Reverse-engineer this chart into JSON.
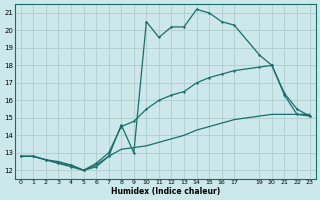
{
  "xlabel": "Humidex (Indice chaleur)",
  "xlim": [
    -0.5,
    23.5
  ],
  "ylim": [
    11.5,
    21.5
  ],
  "yticks": [
    12,
    13,
    14,
    15,
    16,
    17,
    18,
    19,
    20,
    21
  ],
  "xticks": [
    0,
    1,
    2,
    3,
    4,
    5,
    6,
    7,
    8,
    9,
    10,
    11,
    12,
    13,
    14,
    15,
    16,
    17,
    19,
    20,
    21,
    22,
    23
  ],
  "bg_color": "#cce8ea",
  "line_color": "#1a6e6a",
  "grid_color": "#b0cccc",
  "line1_x": [
    0,
    1,
    2,
    3,
    4,
    5,
    6,
    7,
    8,
    9,
    10,
    11,
    12,
    13,
    14,
    15,
    16,
    17,
    19,
    20,
    21,
    22,
    23
  ],
  "line1_y": [
    12.8,
    12.8,
    12.6,
    12.4,
    12.2,
    12.0,
    12.2,
    12.8,
    14.6,
    13.0,
    20.5,
    19.6,
    20.2,
    20.2,
    21.2,
    21.0,
    20.5,
    20.3,
    18.6,
    18.0,
    16.4,
    15.5,
    15.1
  ],
  "line2_x": [
    0,
    1,
    2,
    3,
    4,
    5,
    6,
    7,
    8,
    9,
    10,
    11,
    12,
    13,
    14,
    15,
    16,
    17,
    19,
    20,
    21,
    22,
    23
  ],
  "line2_y": [
    12.8,
    12.8,
    12.6,
    12.5,
    12.3,
    12.0,
    12.4,
    13.0,
    14.5,
    14.8,
    15.5,
    16.0,
    16.3,
    16.5,
    17.0,
    17.3,
    17.5,
    17.7,
    17.9,
    18.0,
    16.3,
    15.2,
    15.1
  ],
  "line3_x": [
    0,
    1,
    2,
    3,
    4,
    5,
    6,
    7,
    8,
    9,
    10,
    11,
    12,
    13,
    14,
    15,
    16,
    17,
    19,
    20,
    21,
    22,
    23
  ],
  "line3_y": [
    12.8,
    12.8,
    12.6,
    12.4,
    12.3,
    12.0,
    12.3,
    12.8,
    13.2,
    13.3,
    13.4,
    13.6,
    13.8,
    14.0,
    14.3,
    14.5,
    14.7,
    14.9,
    15.1,
    15.2,
    15.2,
    15.2,
    15.2
  ]
}
